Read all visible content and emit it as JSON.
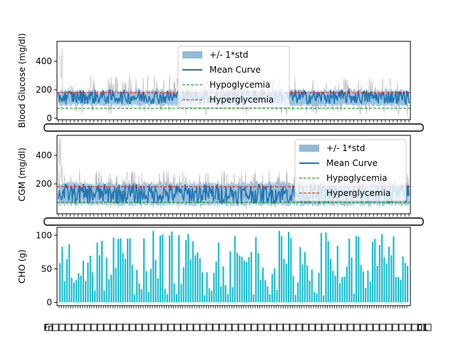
{
  "colors": {
    "mean": "#1f77b4",
    "band": "#8fbbd9",
    "traces": "#7f7f7f",
    "hypo": "#008000",
    "hyper": "#ff0000",
    "cho": "#17becf"
  },
  "chart_data": [
    {
      "type": "line",
      "ylabel": "Blood Glucose (mg/dl)",
      "ylim": [
        -10,
        540
      ],
      "yticks": [
        0,
        200,
        400
      ],
      "grid": false,
      "legend_position": "top-center",
      "legend": [
        "+/- 1*std",
        "Mean Curve",
        "Hypoglycemia",
        "Hyperglycemia"
      ],
      "hypo_threshold": 70,
      "hyper_threshold": 180,
      "mean_range": [
        100,
        200
      ],
      "std_band_range": [
        80,
        210
      ],
      "trace_range": [
        20,
        540
      ],
      "n_points": 480
    },
    {
      "type": "line",
      "ylabel": "CGM (mg/dl)",
      "ylim": [
        -10,
        540
      ],
      "yticks": [
        200,
        400
      ],
      "grid": false,
      "legend_position": "top-right",
      "legend": [
        "+/- 1*std",
        "Mean Curve",
        "Hypoglycemia",
        "Hyperglycemia"
      ],
      "hypo_threshold": 70,
      "hyper_threshold": 180,
      "mean_range": [
        60,
        200
      ],
      "std_band_range": [
        40,
        220
      ],
      "trace_range": [
        20,
        540
      ],
      "n_points": 480
    },
    {
      "type": "bar",
      "ylabel": "CHO (g)",
      "ylim": [
        -5,
        112
      ],
      "yticks": [
        0,
        50,
        100
      ],
      "grid": false,
      "x_first_label": "Fri",
      "x_last_label": "01",
      "n_bars": 150,
      "value_range": [
        10,
        108
      ]
    }
  ]
}
